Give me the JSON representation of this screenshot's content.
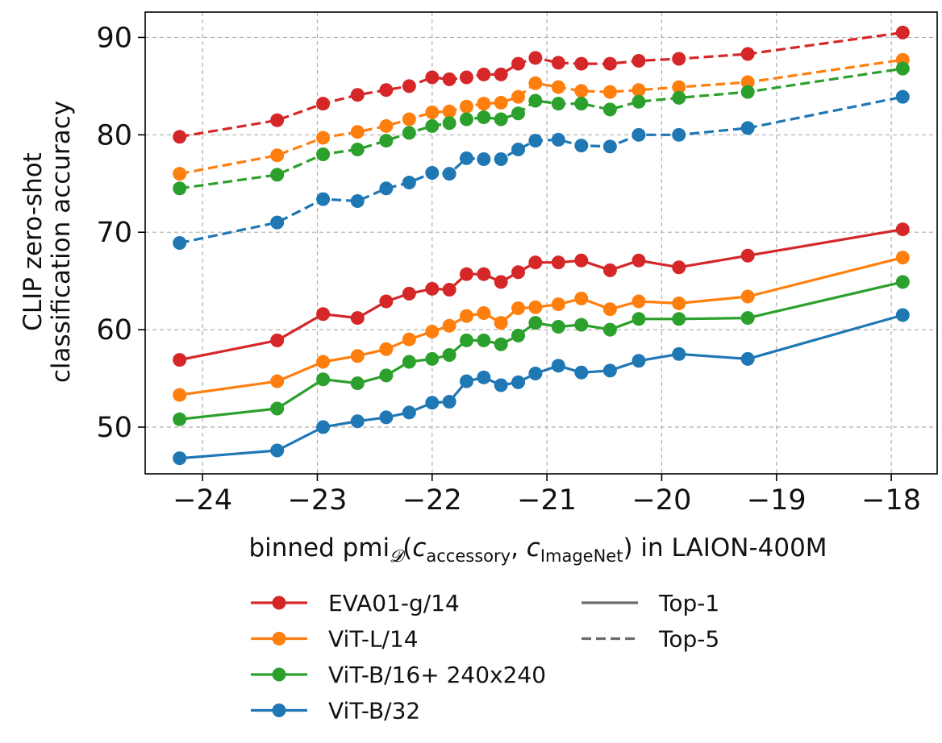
{
  "chart_data": {
    "type": "line",
    "title": "",
    "xlabel": {
      "main": "binned pmi",
      "sub_d": "𝓓",
      "open": "(",
      "c1": "c",
      "c1_sub": "accessory",
      "comma": ", ",
      "c2": "c",
      "c2_sub": "ImageNet",
      "close": ") in LAION-400M"
    },
    "ylabel_lines": [
      "CLIP zero-shot",
      "classification accuracy"
    ],
    "xlim": [
      -24.5,
      -17.6
    ],
    "ylim": [
      45.2,
      92.6
    ],
    "xticks": [
      -24,
      -23,
      -22,
      -21,
      -20,
      -19,
      -18
    ],
    "xtick_labels": [
      "−24",
      "−23",
      "−22",
      "−21",
      "−20",
      "−19",
      "−18"
    ],
    "yticks": [
      50,
      60,
      70,
      80,
      90
    ],
    "ytick_labels": [
      "50",
      "60",
      "70",
      "80",
      "90"
    ],
    "grid": true,
    "x": [
      -24.2,
      -23.35,
      -22.95,
      -22.65,
      -22.4,
      -22.2,
      -22.0,
      -21.85,
      -21.7,
      -21.55,
      -21.4,
      -21.25,
      -21.1,
      -20.9,
      -20.7,
      -20.45,
      -20.2,
      -19.85,
      -19.25,
      -17.9
    ],
    "series": [
      {
        "name": "EVA01-g/14",
        "metric": "Top-1",
        "color": "#d62728",
        "values": [
          56.9,
          58.9,
          61.6,
          61.2,
          62.9,
          63.7,
          64.2,
          64.1,
          65.7,
          65.7,
          64.9,
          65.9,
          66.9,
          66.9,
          67.1,
          66.1,
          67.1,
          66.4,
          67.6,
          70.3
        ]
      },
      {
        "name": "ViT-L/14",
        "metric": "Top-1",
        "color": "#ff7f0e",
        "values": [
          53.3,
          54.7,
          56.7,
          57.3,
          58.0,
          59.0,
          59.8,
          60.4,
          61.4,
          61.7,
          60.7,
          62.2,
          62.3,
          62.6,
          63.2,
          62.1,
          62.9,
          62.7,
          63.4,
          67.4
        ]
      },
      {
        "name": "ViT-B/16+ 240x240",
        "metric": "Top-1",
        "color": "#2ca02c",
        "values": [
          50.8,
          51.9,
          54.9,
          54.5,
          55.3,
          56.7,
          57.0,
          57.4,
          58.9,
          58.9,
          58.5,
          59.4,
          60.7,
          60.3,
          60.5,
          60.0,
          61.1,
          61.1,
          61.2,
          64.9
        ]
      },
      {
        "name": "ViT-B/32",
        "metric": "Top-1",
        "color": "#1f77b4",
        "values": [
          46.8,
          47.6,
          50.0,
          50.6,
          51.0,
          51.5,
          52.5,
          52.6,
          54.7,
          55.1,
          54.3,
          54.6,
          55.5,
          56.3,
          55.6,
          55.8,
          56.8,
          57.5,
          57.0,
          61.5
        ]
      },
      {
        "name": "EVA01-g/14",
        "metric": "Top-5",
        "color": "#d62728",
        "values": [
          79.8,
          81.5,
          83.2,
          84.1,
          84.6,
          85.0,
          85.9,
          85.7,
          85.9,
          86.2,
          86.2,
          87.3,
          87.9,
          87.4,
          87.3,
          87.3,
          87.6,
          87.8,
          88.3,
          90.5
        ]
      },
      {
        "name": "ViT-L/14",
        "metric": "Top-5",
        "color": "#ff7f0e",
        "values": [
          76.0,
          77.9,
          79.7,
          80.3,
          80.9,
          81.6,
          82.3,
          82.4,
          82.9,
          83.2,
          83.3,
          83.9,
          85.3,
          84.9,
          84.5,
          84.4,
          84.6,
          84.9,
          85.4,
          87.7
        ]
      },
      {
        "name": "ViT-B/16+ 240x240",
        "metric": "Top-5",
        "color": "#2ca02c",
        "values": [
          74.5,
          75.9,
          78.0,
          78.5,
          79.4,
          80.2,
          80.9,
          81.2,
          81.6,
          81.8,
          81.6,
          82.2,
          83.5,
          83.2,
          83.2,
          82.6,
          83.4,
          83.8,
          84.4,
          86.8
        ]
      },
      {
        "name": "ViT-B/32",
        "metric": "Top-5",
        "color": "#1f77b4",
        "values": [
          68.9,
          71.0,
          73.4,
          73.2,
          74.5,
          75.1,
          76.1,
          76.0,
          77.6,
          77.5,
          77.5,
          78.5,
          79.4,
          79.5,
          78.9,
          78.8,
          80.0,
          80.0,
          80.7,
          83.9
        ]
      }
    ],
    "legend": {
      "placement": "below",
      "models": [
        {
          "label": "EVA01-g/14",
          "color": "#d62728"
        },
        {
          "label": "ViT-L/14",
          "color": "#ff7f0e"
        },
        {
          "label": "ViT-B/16+ 240x240",
          "color": "#2ca02c"
        },
        {
          "label": "ViT-B/32",
          "color": "#1f77b4"
        }
      ],
      "styles": [
        {
          "label": "Top-1",
          "dashed": false
        },
        {
          "label": "Top-5",
          "dashed": true
        }
      ]
    }
  }
}
